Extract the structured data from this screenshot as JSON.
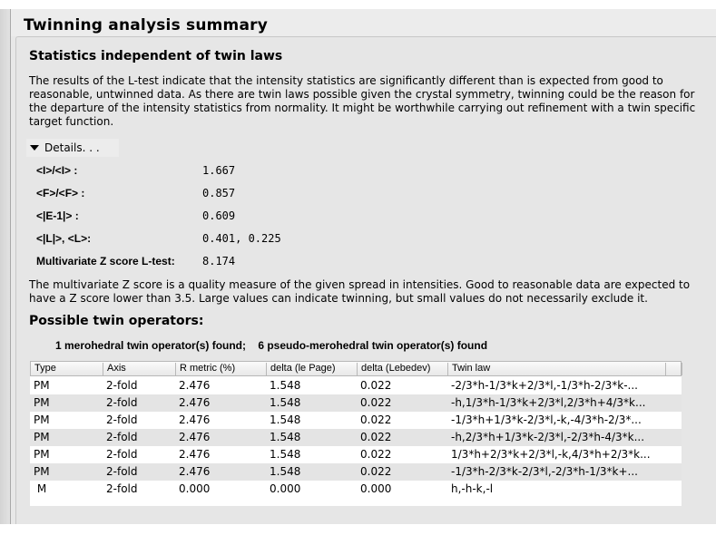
{
  "title": "Twinning analysis summary",
  "section1": {
    "heading": "Statistics independent of twin laws",
    "text": "The results of the L-test indicate that the intensity statistics are significantly different than is expected from good to reasonable, untwinned data. As there are twin laws possible given the crystal symmetry, twinning could be the reason for the departure of the intensity statistics from normality. It might be worthwhile carrying out refinement with a twin specific target function.",
    "details_label": "Details. . .",
    "stats": [
      {
        "label": "<I>/<I> :",
        "value": "1.667"
      },
      {
        "label": "<F>/<F> :",
        "value": "0.857"
      },
      {
        "label": "<|E-1|>  :",
        "value": "0.609"
      },
      {
        "label": "<|L|>, <L>:",
        "value": "0.401, 0.225"
      },
      {
        "label": "Multivariate Z score L-test:",
        "value": "8.174"
      }
    ],
    "zscore_text": "The multivariate Z score is a quality measure of the given spread in intensities. Good to reasonable data are expected to have a Z score lower than 3.5. Large values can indicate twinning, but small values do not necessarily exclude it."
  },
  "section2": {
    "heading": "Possible twin operators:",
    "summary": "1 merohedral twin operator(s) found;    6 pseudo-merohedral twin operator(s) found",
    "columns": [
      "Type",
      "Axis",
      "R metric (%)",
      "delta (le Page)",
      "delta (Lebedev)",
      "Twin law",
      ""
    ],
    "rows": [
      [
        "PM",
        "2-fold",
        "2.476",
        "1.548",
        "0.022",
        "-2/3*h-1/3*k+2/3*l,-1/3*h-2/3*k-..."
      ],
      [
        "PM",
        "2-fold",
        "2.476",
        "1.548",
        "0.022",
        "-h,1/3*h-1/3*k+2/3*l,2/3*h+4/3*k..."
      ],
      [
        "PM",
        "2-fold",
        "2.476",
        "1.548",
        "0.022",
        "-1/3*h+1/3*k-2/3*l,-k,-4/3*h-2/3*..."
      ],
      [
        "PM",
        "2-fold",
        "2.476",
        "1.548",
        "0.022",
        "-h,2/3*h+1/3*k-2/3*l,-2/3*h-4/3*k..."
      ],
      [
        "PM",
        "2-fold",
        "2.476",
        "1.548",
        "0.022",
        "1/3*h+2/3*k+2/3*l,-k,4/3*h+2/3*k..."
      ],
      [
        "PM",
        "2-fold",
        "2.476",
        "1.548",
        "0.022",
        "-1/3*h-2/3*k-2/3*l,-2/3*h-1/3*k+..."
      ],
      [
        " M",
        "2-fold",
        "0.000",
        "0.000",
        "0.000",
        "h,-h-k,-l"
      ]
    ]
  }
}
